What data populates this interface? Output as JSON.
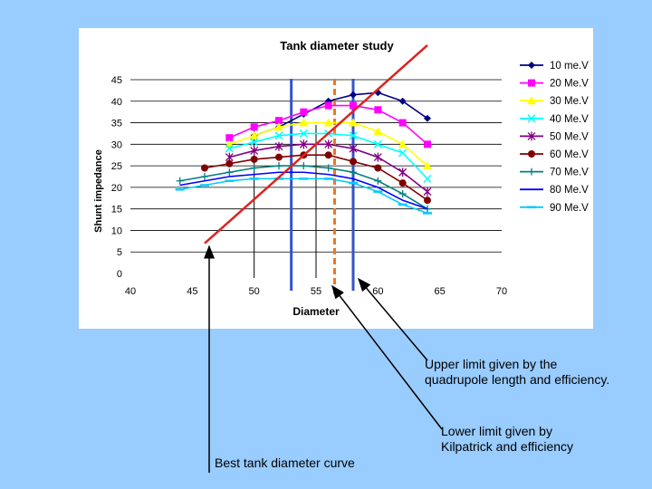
{
  "chart_data": {
    "type": "line",
    "title": "Tank diameter study",
    "xlabel": "Diameter",
    "ylabel": "Shunt impedance",
    "xlim": [
      40,
      70
    ],
    "ylim": [
      0,
      45
    ],
    "x_ticks": [
      "40",
      "45",
      "50",
      "55",
      "60",
      "65",
      "70"
    ],
    "y_ticks": [
      "0",
      "5",
      "10",
      "15",
      "20",
      "25",
      "30",
      "35",
      "40",
      "45"
    ],
    "grid": "horizontal",
    "legend": "right",
    "series": [
      {
        "name": "10 me.V",
        "color": "#000080",
        "marker": "diamond",
        "x": [
          50,
          52,
          54,
          56,
          58,
          60,
          62,
          64
        ],
        "y": [
          32,
          34,
          37,
          40,
          41.5,
          42,
          40,
          36
        ]
      },
      {
        "name": "20 Me.V",
        "color": "#ff00ff",
        "marker": "square",
        "x": [
          48,
          50,
          52,
          54,
          56,
          58,
          60,
          62,
          64
        ],
        "y": [
          31.5,
          34,
          35.5,
          37.5,
          39,
          39,
          38,
          35,
          30
        ]
      },
      {
        "name": "30 Me.V",
        "color": "#ffff00",
        "marker": "triangle",
        "x": [
          48,
          50,
          52,
          54,
          56,
          58,
          60,
          62,
          64
        ],
        "y": [
          30,
          32,
          34,
          35,
          35,
          35,
          33,
          30,
          25
        ]
      },
      {
        "name": "40 Me.V",
        "color": "#00ffff",
        "marker": "x",
        "x": [
          48,
          50,
          52,
          54,
          56,
          58,
          60,
          62,
          64
        ],
        "y": [
          29,
          30.5,
          32,
          32.5,
          32.5,
          32,
          30,
          28,
          22
        ]
      },
      {
        "name": "50 Me.V",
        "color": "#800080",
        "marker": "star",
        "x": [
          48,
          50,
          52,
          54,
          56,
          58,
          60,
          62,
          64
        ],
        "y": [
          27,
          28.5,
          29.5,
          30,
          30,
          29,
          27,
          23.5,
          19
        ]
      },
      {
        "name": "60 Me.V",
        "color": "#800000",
        "marker": "circle",
        "x": [
          46,
          48,
          50,
          52,
          54,
          56,
          58,
          60,
          62,
          64
        ],
        "y": [
          24.5,
          25.5,
          26.5,
          27,
          27.5,
          27.5,
          26,
          24.5,
          21,
          17
        ]
      },
      {
        "name": "70 Me.V",
        "color": "#008080",
        "marker": "plus",
        "x": [
          44,
          46,
          48,
          50,
          52,
          54,
          56,
          58,
          60,
          62,
          64
        ],
        "y": [
          21.5,
          22.5,
          23.5,
          24.5,
          25,
          25,
          24.5,
          23.5,
          21.5,
          18.5,
          15
        ]
      },
      {
        "name": "80 Me.V",
        "color": "#0000ff",
        "marker": "none",
        "x": [
          44,
          46,
          48,
          50,
          52,
          54,
          56,
          58,
          60,
          62,
          64
        ],
        "y": [
          20.5,
          21.5,
          22.5,
          23,
          23.5,
          23.5,
          23,
          22,
          20,
          17,
          15
        ]
      },
      {
        "name": "90 Me.V",
        "color": "#00ccff",
        "marker": "dash",
        "x": [
          44,
          46,
          48,
          50,
          52,
          54,
          56,
          58,
          60,
          62,
          64
        ],
        "y": [
          19.5,
          20.5,
          21.5,
          22,
          22,
          22,
          22,
          21,
          19,
          16,
          14
        ]
      }
    ],
    "reference_lines": [
      {
        "kind": "best-curve",
        "color": "#dd2222",
        "x": [
          46,
          64
        ],
        "y": [
          7,
          53
        ]
      },
      {
        "kind": "vertical",
        "color": "#3355cc",
        "x": 53
      },
      {
        "kind": "vertical",
        "color": "#3355cc",
        "x": 58
      },
      {
        "kind": "vertical-dashed",
        "color": "#ee7722",
        "x": 56.5
      },
      {
        "kind": "vertical-thin",
        "color": "#000000",
        "x": 50
      },
      {
        "kind": "vertical-thin",
        "color": "#000000",
        "x": 55
      }
    ]
  },
  "annotations": {
    "upper_limit_line1": "Upper limit given by the",
    "upper_limit_line2": "quadrupole length and efficiency.",
    "lower_limit_line1": "Lower limit given by",
    "lower_limit_line2": "Kilpatrick and efficiency",
    "best_curve": "Best tank diameter curve"
  }
}
